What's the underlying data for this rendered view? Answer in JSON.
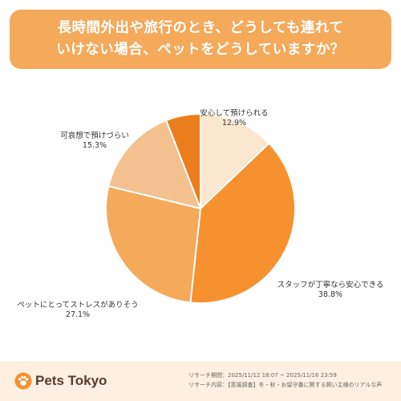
{
  "title": "長時間外出や旅行のとき、どうしても連れて\nいけない場合、ペットをどうしていますか？",
  "chart_data": {
    "type": "pie",
    "slices": [
      {
        "label": "安心して預けられる",
        "percent_label": "12.9%",
        "value": 12.9,
        "color": "#fbe6cf"
      },
      {
        "label": "スタッフが丁寧なら安心できる",
        "percent_label": "38.8%",
        "value": 38.8,
        "color": "#f5912f"
      },
      {
        "label": "ペットにとってストレスがありそう",
        "percent_label": "27.1%",
        "value": 27.1,
        "color": "#f4a95b"
      },
      {
        "label": "可哀想で預けづらい",
        "percent_label": "15.3%",
        "value": 15.3,
        "color": "#f3c08f"
      },
      {
        "label": "",
        "percent_label": "",
        "value": 5.9,
        "color": "#ec7d1c"
      }
    ]
  },
  "footer": {
    "brand": "Pets Tokyo",
    "research_period": "リサーチ期間：2025/11/12 18:07 ~ 2025/11/16 23:59",
    "research_content": "リサーチ内容：【意識調査】冬・秋・お留守番に関する飼い主様のリアルな声"
  },
  "colors": {
    "title_bg": "#f4a95b",
    "footer_bg": "#fdf0e2",
    "brand": "#5b3a29",
    "logo_accent": "#f5912f"
  }
}
